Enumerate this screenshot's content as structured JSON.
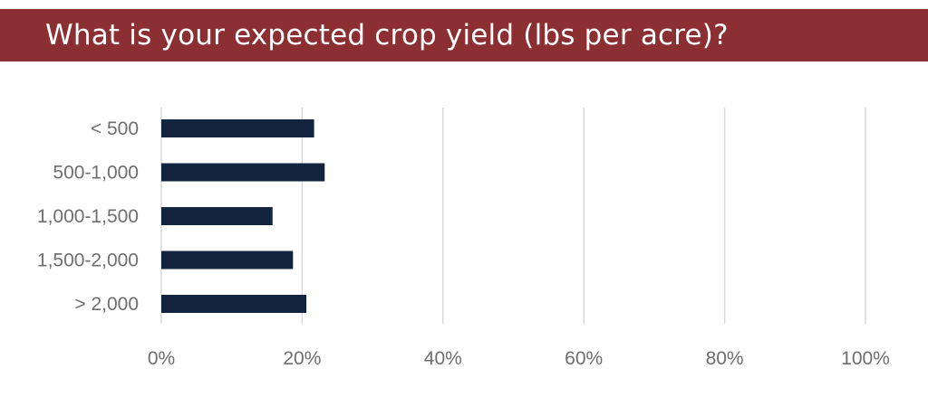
{
  "title": "What is your expected crop yield (lbs per acre)?",
  "colors": {
    "banner": "#8b2f33",
    "bar": "#13243f",
    "grid": "#d9d9d9",
    "tick_text": "#6e6e6e"
  },
  "chart_data": {
    "type": "bar",
    "orientation": "horizontal",
    "categories": [
      "< 500",
      "500-1,000",
      "1,000-1,500",
      "1,500-2,000",
      "> 2,000"
    ],
    "values": [
      21.7,
      23.2,
      15.8,
      18.7,
      20.6
    ],
    "xlim": [
      0,
      100
    ],
    "xticks": [
      "0%",
      "20%",
      "40%",
      "60%",
      "80%",
      "100%"
    ],
    "grid": true,
    "legend": "none"
  }
}
